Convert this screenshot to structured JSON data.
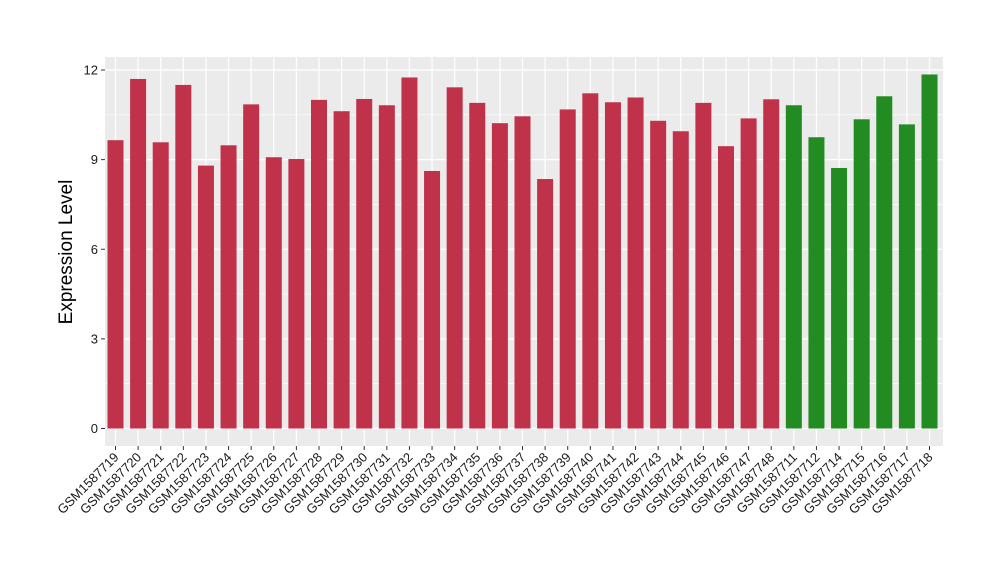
{
  "chart_data": {
    "type": "bar",
    "title": "",
    "xlabel": "",
    "ylabel": "Expression Level",
    "ylim": [
      0,
      12.4
    ],
    "yticks": [
      0,
      3,
      6,
      9,
      12
    ],
    "grid": true,
    "categories": [
      "GSM1587719",
      "GSM1587720",
      "GSM1587721",
      "GSM1587722",
      "GSM1587723",
      "GSM1587724",
      "GSM1587725",
      "GSM1587726",
      "GSM1587727",
      "GSM1587728",
      "GSM1587729",
      "GSM1587730",
      "GSM1587731",
      "GSM1587732",
      "GSM1587733",
      "GSM1587734",
      "GSM1587735",
      "GSM1587736",
      "GSM1587737",
      "GSM1587738",
      "GSM1587739",
      "GSM1587740",
      "GSM1587741",
      "GSM1587742",
      "GSM1587743",
      "GSM1587744",
      "GSM1587745",
      "GSM1587746",
      "GSM1587747",
      "GSM1587748",
      "GSM1587711",
      "GSM1587712",
      "GSM1587714",
      "GSM1587715",
      "GSM1587716",
      "GSM1587717",
      "GSM1587718"
    ],
    "values": [
      9.65,
      11.7,
      9.58,
      11.5,
      8.8,
      9.48,
      10.85,
      9.08,
      9.02,
      11.0,
      10.62,
      11.03,
      10.82,
      11.75,
      8.62,
      11.42,
      10.9,
      10.22,
      10.45,
      8.35,
      10.68,
      11.22,
      10.92,
      11.08,
      10.3,
      9.95,
      10.9,
      9.45,
      10.38,
      11.02,
      10.82,
      9.75,
      8.72,
      10.35,
      11.12,
      10.18,
      11.85
    ],
    "groups": [
      1,
      1,
      1,
      1,
      1,
      1,
      1,
      1,
      1,
      1,
      1,
      1,
      1,
      1,
      1,
      1,
      1,
      1,
      1,
      1,
      1,
      1,
      1,
      1,
      1,
      1,
      1,
      1,
      1,
      1,
      2,
      2,
      2,
      2,
      2,
      2,
      2
    ],
    "colors": {
      "group1": "#c0314a",
      "group2": "#228b22",
      "panel": "#ebebeb",
      "gridline": "#ffffff"
    }
  }
}
